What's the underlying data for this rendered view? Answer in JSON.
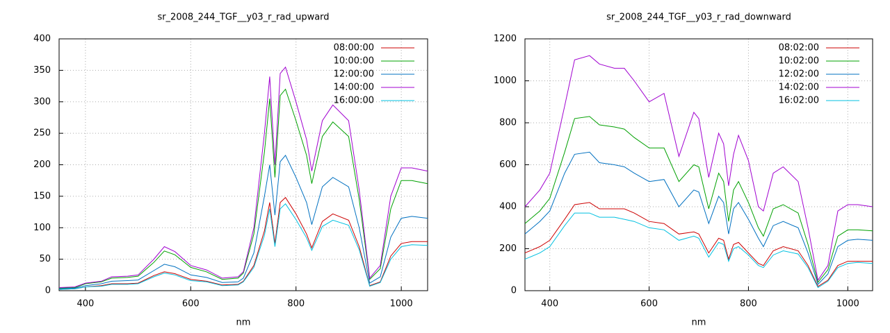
{
  "chart_data": [
    {
      "type": "line",
      "title": "sr_2008_244_TGF__y03_r_rad_upward",
      "xlabel": "nm",
      "x": [
        350,
        380,
        400,
        430,
        450,
        480,
        500,
        530,
        550,
        570,
        600,
        630,
        660,
        690,
        700,
        720,
        740,
        750,
        760,
        770,
        780,
        800,
        820,
        830,
        850,
        870,
        900,
        920,
        940,
        960,
        980,
        1000,
        1020,
        1050
      ],
      "xlim": [
        350,
        1050
      ],
      "xticks": [
        400,
        600,
        800,
        1000
      ],
      "ylim": [
        0,
        400
      ],
      "yticks": [
        0,
        50,
        100,
        150,
        200,
        250,
        300,
        350,
        400
      ],
      "grid": true,
      "legend": "top-right",
      "series": [
        {
          "name": "08:00:00",
          "color": "#cc0000",
          "values": [
            2,
            3,
            6,
            8,
            11,
            11,
            12,
            24,
            30,
            27,
            18,
            15,
            9,
            10,
            15,
            40,
            95,
            140,
            75,
            140,
            148,
            122,
            90,
            68,
            110,
            122,
            112,
            70,
            8,
            14,
            55,
            75,
            78,
            78
          ]
        },
        {
          "name": "10:00:00",
          "color": "#00a000",
          "values": [
            4,
            5,
            11,
            14,
            20,
            21,
            23,
            45,
            63,
            57,
            37,
            30,
            18,
            20,
            28,
            90,
            220,
            305,
            180,
            310,
            320,
            270,
            215,
            170,
            245,
            268,
            245,
            145,
            18,
            35,
            130,
            175,
            175,
            170
          ]
        },
        {
          "name": "12:00:00",
          "color": "#0070c0",
          "values": [
            3,
            4,
            8,
            11,
            15,
            16,
            17,
            32,
            42,
            38,
            25,
            21,
            13,
            14,
            20,
            60,
            150,
            200,
            120,
            205,
            215,
            180,
            140,
            105,
            165,
            180,
            165,
            100,
            12,
            22,
            85,
            115,
            118,
            115
          ]
        },
        {
          "name": "14:00:00",
          "color": "#a000d0",
          "values": [
            5,
            6,
            12,
            15,
            22,
            23,
            25,
            50,
            70,
            62,
            40,
            33,
            20,
            22,
            30,
            100,
            250,
            340,
            200,
            345,
            355,
            300,
            240,
            190,
            270,
            295,
            270,
            160,
            20,
            40,
            150,
            195,
            195,
            190
          ]
        },
        {
          "name": "16:00:00",
          "color": "#00c0e0",
          "values": [
            2,
            3,
            6,
            7,
            10,
            10,
            11,
            22,
            28,
            25,
            16,
            14,
            8,
            9,
            14,
            37,
            88,
            130,
            70,
            130,
            138,
            113,
            84,
            64,
            102,
            112,
            104,
            65,
            7,
            13,
            50,
            70,
            73,
            72
          ]
        }
      ]
    },
    {
      "type": "line",
      "title": "sr_2008_244_TGF__y03_r_rad_downward",
      "xlabel": "nm",
      "x": [
        350,
        380,
        400,
        430,
        450,
        480,
        500,
        530,
        550,
        570,
        600,
        630,
        660,
        690,
        700,
        720,
        740,
        750,
        760,
        770,
        780,
        800,
        820,
        830,
        850,
        870,
        900,
        920,
        940,
        960,
        980,
        1000,
        1020,
        1050
      ],
      "xlim": [
        350,
        1050
      ],
      "xticks": [
        400,
        600,
        800,
        1000
      ],
      "ylim": [
        0,
        1200
      ],
      "yticks": [
        0,
        200,
        400,
        600,
        800,
        1000,
        1200
      ],
      "grid": true,
      "legend": "top-right",
      "series": [
        {
          "name": "08:02:00",
          "color": "#cc0000",
          "values": [
            180,
            210,
            240,
            340,
            410,
            420,
            390,
            390,
            390,
            370,
            330,
            320,
            270,
            280,
            270,
            180,
            250,
            240,
            150,
            220,
            230,
            180,
            130,
            120,
            190,
            210,
            190,
            120,
            20,
            50,
            120,
            140,
            140,
            140
          ]
        },
        {
          "name": "10:02:00",
          "color": "#00a000",
          "values": [
            320,
            380,
            440,
            660,
            820,
            830,
            790,
            780,
            770,
            730,
            680,
            680,
            520,
            600,
            590,
            390,
            560,
            520,
            330,
            480,
            520,
            420,
            300,
            260,
            390,
            410,
            370,
            220,
            40,
            100,
            260,
            290,
            290,
            285
          ]
        },
        {
          "name": "12:02:00",
          "color": "#0070c0",
          "values": [
            270,
            330,
            380,
            560,
            650,
            660,
            610,
            600,
            590,
            560,
            520,
            530,
            400,
            480,
            470,
            320,
            450,
            420,
            270,
            390,
            420,
            340,
            250,
            210,
            310,
            330,
            300,
            180,
            30,
            80,
            210,
            240,
            245,
            240
          ]
        },
        {
          "name": "14:02:00",
          "color": "#a000d0",
          "values": [
            400,
            480,
            560,
            880,
            1100,
            1120,
            1080,
            1060,
            1060,
            1000,
            900,
            940,
            640,
            850,
            820,
            540,
            750,
            700,
            500,
            650,
            740,
            620,
            400,
            380,
            560,
            590,
            520,
            300,
            50,
            120,
            380,
            410,
            410,
            400
          ]
        },
        {
          "name": "16:02:00",
          "color": "#00c0e0",
          "values": [
            150,
            180,
            210,
            310,
            370,
            370,
            350,
            350,
            340,
            330,
            300,
            290,
            240,
            260,
            250,
            160,
            230,
            220,
            140,
            200,
            210,
            170,
            120,
            110,
            170,
            190,
            175,
            110,
            15,
            45,
            110,
            130,
            135,
            130
          ]
        }
      ]
    }
  ]
}
